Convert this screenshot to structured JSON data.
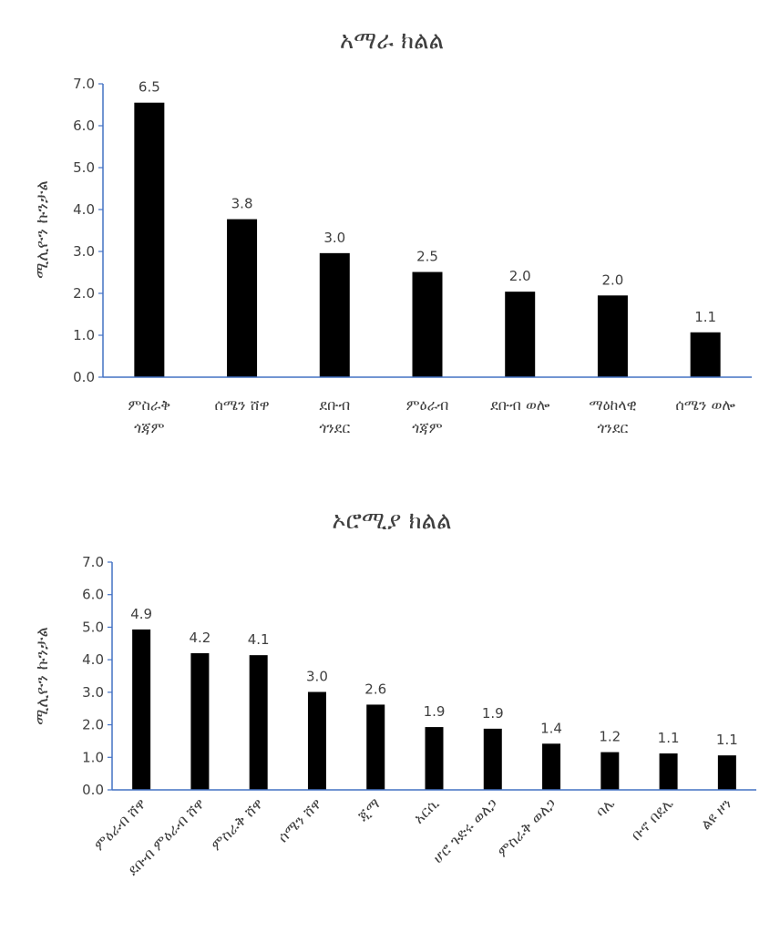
{
  "chart_data": [
    {
      "type": "bar",
      "title": "አማራ ክልል",
      "xlabel": "",
      "ylabel": "ሚሊዮን ኩንታል",
      "ylim": [
        0,
        7
      ],
      "ytick_labels": [
        "0.0",
        "1.0",
        "2.0",
        "3.0",
        "4.0",
        "5.0",
        "6.0",
        "7.0"
      ],
      "categories": [
        [
          "ምስራቅ",
          "ጎጃም"
        ],
        [
          "ሰሜን ሸዋ"
        ],
        [
          "ደቡብ",
          "ጎንደር"
        ],
        [
          "ምዕራብ",
          "ጎጃም"
        ],
        [
          "ደቡብ ወሎ"
        ],
        [
          "ማዕከላዊ",
          "ጎንደር"
        ],
        [
          "ሰሜን ወሎ"
        ]
      ],
      "values": [
        6.55,
        3.77,
        2.96,
        2.51,
        2.04,
        1.95,
        1.07
      ],
      "data_labels": [
        "6.5",
        "3.8",
        "3.0",
        "2.5",
        "2.0",
        "2.0",
        "1.1"
      ],
      "bar_color": "#000000",
      "axis_color": "#4472C4"
    },
    {
      "type": "bar",
      "title": "ኦሮሚያ ክልል",
      "xlabel": "",
      "ylabel": "ሚሊዮን ኩንታል",
      "ylim": [
        0,
        7
      ],
      "ytick_labels": [
        "0.0",
        "1.0",
        "2.0",
        "3.0",
        "4.0",
        "5.0",
        "6.0",
        "7.0"
      ],
      "categories": [
        "ምዕራብ ሸዋ",
        "ደቡብ ምዕራብ ሸዋ",
        "ምስራቅ ሸዋ",
        "ሰሜን ሸዋ",
        "ጂማ",
        "አርሲ",
        "ሆሮ ጉድሩ ወለጋ",
        "ምስራቅ ወለጋ",
        "ባሌ",
        "ቡኖ በደሌ",
        "ልዩ ዞን"
      ],
      "values": [
        4.93,
        4.2,
        4.14,
        3.01,
        2.62,
        1.93,
        1.88,
        1.42,
        1.16,
        1.12,
        1.06
      ],
      "data_labels": [
        "4.9",
        "4.2",
        "4.1",
        "3.0",
        "2.6",
        "1.9",
        "1.9",
        "1.4",
        "1.2",
        "1.1",
        "1.1"
      ],
      "bar_color": "#000000",
      "axis_color": "#4472C4"
    }
  ]
}
